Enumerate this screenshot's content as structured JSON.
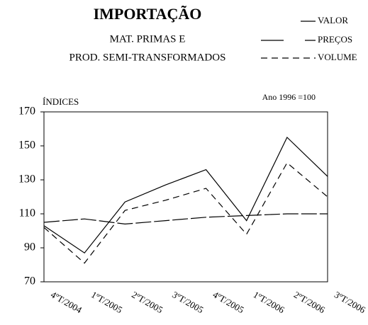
{
  "chart_data": {
    "type": "line",
    "title": "IMPORTAÇÃO",
    "subtitle": [
      "MAT. PRIMAS E",
      "PROD. SEMI-TRANSFORMADOS"
    ],
    "y_label": "ÍNDICES",
    "annotation": "Ano 1996 =100",
    "categories": [
      "4ºT/2004",
      "1ºT/2005",
      "2ºT/2005",
      "3ºT/2005",
      "4ºT/2005",
      "1ºT/2006",
      "2ºT/2006",
      "3ºT/2006"
    ],
    "series": [
      {
        "name": "VALOR",
        "color": "#000000",
        "dash": "solid",
        "values": [
          103,
          87,
          117,
          127,
          136,
          106,
          155,
          132
        ]
      },
      {
        "name": "PREÇOS",
        "color": "#000000",
        "dash": "longdash",
        "values": [
          105,
          107,
          104,
          106,
          108,
          109,
          110,
          110
        ]
      },
      {
        "name": "VOLUME",
        "color": "#000000",
        "dash": "dash",
        "values": [
          102,
          81,
          112,
          118,
          125,
          98,
          140,
          120
        ]
      }
    ],
    "ylim": [
      70,
      170
    ],
    "yticks": [
      70,
      90,
      110,
      130,
      150,
      170
    ],
    "legend": "top-right"
  }
}
